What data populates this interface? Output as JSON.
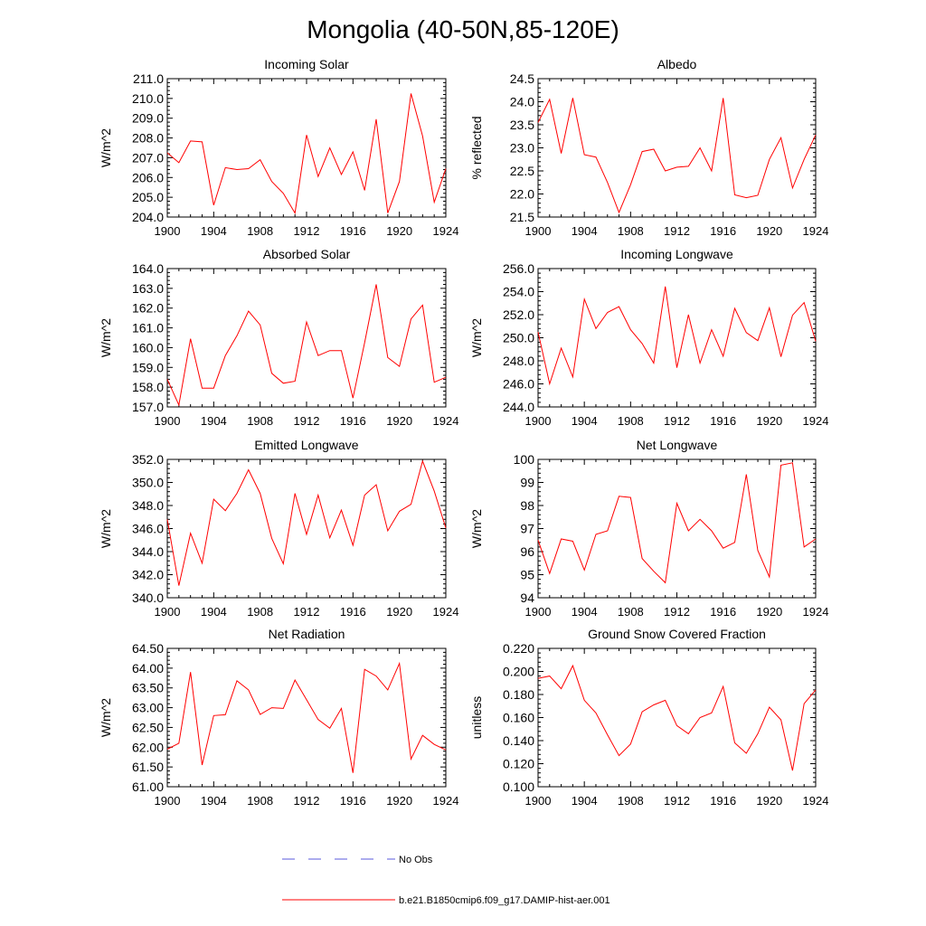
{
  "title": "Mongolia (40-50N,85-120E)",
  "legend": [
    {
      "label": "No Obs",
      "color": "#5a5adc",
      "style": "dashed"
    },
    {
      "label": "b.e21.B1850cmip6.f09_g17.DAMIP-hist-aer.001",
      "color": "#ff0000",
      "style": "solid"
    }
  ],
  "colors": {
    "series": "#ff0000",
    "obs": "#5a5adc"
  },
  "chart_data": [
    {
      "type": "line",
      "title": "Incoming Solar",
      "ylabel": "W/m^2",
      "xlim": [
        1900,
        1924
      ],
      "ylim": [
        204.0,
        211.0
      ],
      "xticks": [
        "1900",
        "1904",
        "1908",
        "1912",
        "1916",
        "1920",
        "1924"
      ],
      "yticks": [
        "204.0",
        "205.0",
        "206.0",
        "207.0",
        "208.0",
        "209.0",
        "210.0",
        "211.0"
      ],
      "x": [
        1900,
        1901,
        1902,
        1903,
        1904,
        1905,
        1906,
        1907,
        1908,
        1909,
        1910,
        1911,
        1912,
        1913,
        1914,
        1915,
        1916,
        1917,
        1918,
        1919,
        1920,
        1921,
        1922,
        1923,
        1924
      ],
      "series": [
        {
          "name": "b.e21.B1850cmip6.f09_g17.DAMIP-hist-aer.001",
          "values": [
            207.25,
            206.75,
            207.85,
            207.8,
            204.6,
            206.5,
            206.4,
            206.45,
            206.9,
            205.8,
            205.2,
            204.2,
            208.15,
            206.05,
            207.5,
            206.15,
            207.3,
            205.35,
            208.95,
            204.2,
            205.8,
            210.25,
            208.1,
            204.75,
            206.45
          ]
        }
      ]
    },
    {
      "type": "line",
      "title": "Albedo",
      "ylabel": "% reflected",
      "xlim": [
        1900,
        1924
      ],
      "ylim": [
        21.5,
        24.5
      ],
      "xticks": [
        "1900",
        "1904",
        "1908",
        "1912",
        "1916",
        "1920",
        "1924"
      ],
      "yticks": [
        "21.5",
        "22.0",
        "22.5",
        "23.0",
        "23.5",
        "24.0",
        "24.5"
      ],
      "x": [
        1900,
        1901,
        1902,
        1903,
        1904,
        1905,
        1906,
        1907,
        1908,
        1909,
        1910,
        1911,
        1912,
        1913,
        1914,
        1915,
        1916,
        1917,
        1918,
        1919,
        1920,
        1921,
        1922,
        1923,
        1924
      ],
      "series": [
        {
          "name": "b.e21.B1850cmip6.f09_g17.DAMIP-hist-aer.001",
          "values": [
            23.55,
            24.05,
            22.88,
            24.08,
            22.85,
            22.8,
            22.25,
            21.6,
            22.2,
            22.92,
            22.97,
            22.5,
            22.58,
            22.6,
            23.0,
            22.5,
            24.08,
            21.98,
            21.92,
            21.97,
            22.75,
            23.22,
            22.13,
            22.75,
            23.28
          ]
        }
      ]
    },
    {
      "type": "line",
      "title": "Absorbed Solar",
      "ylabel": "W/m^2",
      "xlim": [
        1900,
        1924
      ],
      "ylim": [
        157.0,
        164.0
      ],
      "xticks": [
        "1900",
        "1904",
        "1908",
        "1912",
        "1916",
        "1920",
        "1924"
      ],
      "yticks": [
        "157.0",
        "158.0",
        "159.0",
        "160.0",
        "161.0",
        "162.0",
        "163.0",
        "164.0"
      ],
      "x": [
        1900,
        1901,
        1902,
        1903,
        1904,
        1905,
        1906,
        1907,
        1908,
        1909,
        1910,
        1911,
        1912,
        1913,
        1914,
        1915,
        1916,
        1917,
        1918,
        1919,
        1920,
        1921,
        1922,
        1923,
        1924
      ],
      "series": [
        {
          "name": "b.e21.B1850cmip6.f09_g17.DAMIP-hist-aer.001",
          "values": [
            158.4,
            157.1,
            160.45,
            157.95,
            157.95,
            159.6,
            160.6,
            161.85,
            161.15,
            158.7,
            158.2,
            158.3,
            161.3,
            159.6,
            159.85,
            159.85,
            157.45,
            160.25,
            163.2,
            159.5,
            159.05,
            161.45,
            162.15,
            158.25,
            158.5
          ]
        }
      ]
    },
    {
      "type": "line",
      "title": "Incoming Longwave",
      "ylabel": "W/m^2",
      "xlim": [
        1900,
        1924
      ],
      "ylim": [
        244.0,
        256.0
      ],
      "xticks": [
        "1900",
        "1904",
        "1908",
        "1912",
        "1916",
        "1920",
        "1924"
      ],
      "yticks": [
        "244.0",
        "246.0",
        "248.0",
        "250.0",
        "252.0",
        "254.0",
        "256.0"
      ],
      "x": [
        1900,
        1901,
        1902,
        1903,
        1904,
        1905,
        1906,
        1907,
        1908,
        1909,
        1910,
        1911,
        1912,
        1913,
        1914,
        1915,
        1916,
        1917,
        1918,
        1919,
        1920,
        1921,
        1922,
        1923,
        1924
      ],
      "series": [
        {
          "name": "b.e21.B1850cmip6.f09_g17.DAMIP-hist-aer.001",
          "values": [
            250.5,
            246.0,
            249.1,
            246.6,
            253.35,
            250.8,
            252.2,
            252.7,
            250.7,
            249.5,
            247.8,
            254.45,
            247.4,
            252.0,
            247.8,
            250.7,
            248.4,
            252.55,
            250.45,
            249.75,
            252.6,
            248.35,
            251.95,
            253.05,
            249.7
          ]
        }
      ]
    },
    {
      "type": "line",
      "title": "Emitted Longwave",
      "ylabel": "W/m^2",
      "xlim": [
        1900,
        1924
      ],
      "ylim": [
        340.0,
        352.0
      ],
      "xticks": [
        "1900",
        "1904",
        "1908",
        "1912",
        "1916",
        "1920",
        "1924"
      ],
      "yticks": [
        "340.0",
        "342.0",
        "344.0",
        "346.0",
        "348.0",
        "350.0",
        "352.0"
      ],
      "x": [
        1900,
        1901,
        1902,
        1903,
        1904,
        1905,
        1906,
        1907,
        1908,
        1909,
        1910,
        1911,
        1912,
        1913,
        1914,
        1915,
        1916,
        1917,
        1918,
        1919,
        1920,
        1921,
        1922,
        1923,
        1924
      ],
      "series": [
        {
          "name": "b.e21.B1850cmip6.f09_g17.DAMIP-hist-aer.001",
          "values": [
            346.8,
            341.05,
            345.6,
            343.0,
            348.55,
            347.55,
            349.05,
            351.1,
            349.05,
            345.15,
            342.95,
            349.05,
            345.5,
            348.9,
            345.2,
            347.6,
            344.55,
            348.9,
            349.8,
            345.8,
            347.5,
            348.1,
            351.85,
            349.25,
            346.05
          ]
        }
      ]
    },
    {
      "type": "line",
      "title": "Net Longwave",
      "ylabel": "W/m^2",
      "xlim": [
        1900,
        1924
      ],
      "ylim": [
        94,
        100
      ],
      "xticks": [
        "1900",
        "1904",
        "1908",
        "1912",
        "1916",
        "1920",
        "1924"
      ],
      "yticks": [
        "94",
        "95",
        "96",
        "97",
        "98",
        "99",
        "100"
      ],
      "x": [
        1900,
        1901,
        1902,
        1903,
        1904,
        1905,
        1906,
        1907,
        1908,
        1909,
        1910,
        1911,
        1912,
        1913,
        1914,
        1915,
        1916,
        1917,
        1918,
        1919,
        1920,
        1921,
        1922,
        1923,
        1924
      ],
      "series": [
        {
          "name": "b.e21.B1850cmip6.f09_g17.DAMIP-hist-aer.001",
          "values": [
            96.5,
            95.05,
            96.55,
            96.45,
            95.2,
            96.75,
            96.9,
            98.4,
            98.35,
            95.7,
            95.15,
            94.65,
            98.1,
            96.9,
            97.4,
            96.9,
            96.15,
            96.4,
            99.35,
            96.05,
            94.9,
            99.75,
            99.85,
            96.2,
            96.55
          ]
        }
      ]
    },
    {
      "type": "line",
      "title": "Net Radiation",
      "ylabel": "W/m^2",
      "xlim": [
        1900,
        1924
      ],
      "ylim": [
        61.0,
        64.5
      ],
      "xticks": [
        "1900",
        "1904",
        "1908",
        "1912",
        "1916",
        "1920",
        "1924"
      ],
      "yticks": [
        "61.00",
        "61.50",
        "62.00",
        "62.50",
        "63.00",
        "63.50",
        "64.00",
        "64.50"
      ],
      "x": [
        1900,
        1901,
        1902,
        1903,
        1904,
        1905,
        1906,
        1907,
        1908,
        1909,
        1910,
        1911,
        1912,
        1913,
        1914,
        1915,
        1916,
        1917,
        1918,
        1919,
        1920,
        1921,
        1922,
        1923,
        1924
      ],
      "series": [
        {
          "name": "b.e21.B1850cmip6.f09_g17.DAMIP-hist-aer.001",
          "values": [
            61.95,
            62.1,
            63.9,
            61.55,
            62.8,
            62.82,
            63.68,
            63.45,
            62.83,
            63.0,
            62.98,
            63.7,
            63.2,
            62.7,
            62.48,
            62.98,
            61.35,
            63.97,
            63.8,
            63.45,
            64.12,
            61.7,
            62.3,
            62.07,
            61.93
          ]
        }
      ]
    },
    {
      "type": "line",
      "title": "Ground Snow Covered Fraction",
      "ylabel": "unitless",
      "xlim": [
        1900,
        1924
      ],
      "ylim": [
        0.1,
        0.22
      ],
      "xticks": [
        "1900",
        "1904",
        "1908",
        "1912",
        "1916",
        "1920",
        "1924"
      ],
      "yticks": [
        "0.100",
        "0.120",
        "0.140",
        "0.160",
        "0.180",
        "0.200",
        "0.220"
      ],
      "x": [
        1900,
        1901,
        1902,
        1903,
        1904,
        1905,
        1906,
        1907,
        1908,
        1909,
        1910,
        1911,
        1912,
        1913,
        1914,
        1915,
        1916,
        1917,
        1918,
        1919,
        1920,
        1921,
        1922,
        1923,
        1924
      ],
      "series": [
        {
          "name": "b.e21.B1850cmip6.f09_g17.DAMIP-hist-aer.001",
          "values": [
            0.194,
            0.196,
            0.185,
            0.205,
            0.175,
            0.164,
            0.145,
            0.127,
            0.137,
            0.165,
            0.171,
            0.175,
            0.153,
            0.146,
            0.16,
            0.164,
            0.187,
            0.138,
            0.129,
            0.146,
            0.169,
            0.158,
            0.114,
            0.172,
            0.184
          ]
        }
      ]
    }
  ]
}
